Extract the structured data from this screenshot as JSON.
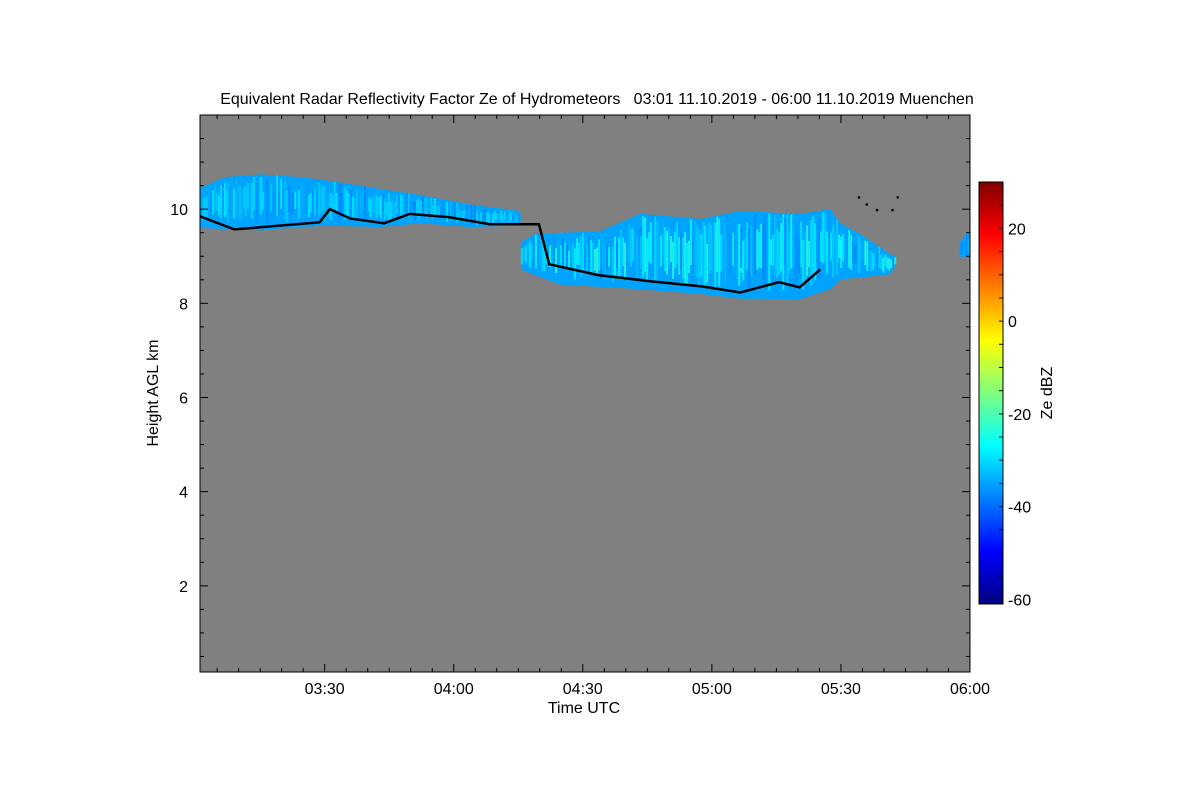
{
  "chart_data": {
    "type": "heatmap",
    "title": "Equivalent Radar Reflectivity Factor Ze of Hydrometeors   03:01 11.10.2019 - 06:00 11.10.2019 Muenchen",
    "xlabel": "Time UTC",
    "ylabel": "Height AGL km",
    "colorbar_label": "Ze dBZ",
    "xlim_hours": [
      3.017,
      6.0
    ],
    "ylim": [
      0.17,
      12.0
    ],
    "x_ticks": [
      {
        "v": 3.5,
        "label": "03:30"
      },
      {
        "v": 4.0,
        "label": "04:00"
      },
      {
        "v": 4.5,
        "label": "04:30"
      },
      {
        "v": 5.0,
        "label": "05:00"
      },
      {
        "v": 5.5,
        "label": "05:30"
      },
      {
        "v": 6.0,
        "label": "06:00"
      }
    ],
    "y_ticks": [
      {
        "v": 2,
        "label": "2"
      },
      {
        "v": 4,
        "label": "4"
      },
      {
        "v": 6,
        "label": "6"
      },
      {
        "v": 8,
        "label": "8"
      },
      {
        "v": 10,
        "label": "10"
      }
    ],
    "colorbar_range": [
      -61,
      30
    ],
    "colorbar_ticks": [
      {
        "v": 20,
        "label": "20"
      },
      {
        "v": 0,
        "label": "0"
      },
      {
        "v": -20,
        "label": "-20"
      },
      {
        "v": -40,
        "label": "-40"
      },
      {
        "v": -60,
        "label": "-60"
      }
    ],
    "colormap": "jet",
    "background_color": "#808080",
    "cloud_layers": [
      {
        "name": "upper cirrus layer",
        "dbz_range": [
          -38,
          -28
        ],
        "profile": [
          [
            3.017,
            9.6,
            10.45
          ],
          [
            3.114,
            9.58,
            10.68
          ],
          [
            3.25,
            9.55,
            10.74
          ],
          [
            3.404,
            9.62,
            10.68
          ],
          [
            3.52,
            9.65,
            10.6
          ],
          [
            3.714,
            9.62,
            10.43
          ],
          [
            3.869,
            9.7,
            10.3
          ],
          [
            4.063,
            9.62,
            10.1
          ],
          [
            4.257,
            9.65,
            9.96
          ]
        ]
      },
      {
        "name": "lower cirrus layer",
        "dbz_range": [
          -38,
          -22
        ],
        "profile": [
          [
            4.26,
            8.72,
            9.3
          ],
          [
            4.315,
            8.6,
            9.47
          ],
          [
            4.412,
            8.4,
            9.5
          ],
          [
            4.567,
            8.35,
            9.53
          ],
          [
            4.722,
            8.3,
            9.9
          ],
          [
            4.955,
            8.2,
            9.79
          ],
          [
            5.11,
            8.1,
            9.96
          ],
          [
            5.342,
            8.09,
            9.9
          ],
          [
            5.458,
            8.3,
            10.0
          ],
          [
            5.497,
            8.51,
            9.7
          ],
          [
            5.575,
            8.55,
            9.47
          ],
          [
            5.691,
            8.62,
            9.04
          ],
          [
            5.71,
            8.8,
            9.0
          ]
        ]
      },
      {
        "name": "edge patch",
        "dbz_range": [
          -38,
          -32
        ],
        "profile": [
          [
            5.96,
            9.0,
            9.3
          ],
          [
            6.0,
            8.95,
            9.55
          ]
        ]
      }
    ],
    "cloud_base_line": [
      [
        3.017,
        9.85
      ],
      [
        3.15,
        9.57
      ],
      [
        3.48,
        9.72
      ],
      [
        3.52,
        10.0
      ],
      [
        3.6,
        9.8
      ],
      [
        3.73,
        9.7
      ],
      [
        3.83,
        9.9
      ],
      [
        3.98,
        9.83
      ],
      [
        4.14,
        9.68
      ],
      [
        4.33,
        9.68
      ],
      [
        4.37,
        8.83
      ],
      [
        4.56,
        8.6
      ],
      [
        4.76,
        8.47
      ],
      [
        4.96,
        8.36
      ],
      [
        5.11,
        8.23
      ],
      [
        5.26,
        8.45
      ],
      [
        5.34,
        8.34
      ],
      [
        5.42,
        8.72
      ]
    ],
    "top_dots": [
      [
        5.57,
        10.25
      ],
      [
        5.6,
        10.1
      ],
      [
        5.64,
        9.98
      ],
      [
        5.7,
        9.98
      ],
      [
        5.72,
        10.25
      ]
    ]
  }
}
